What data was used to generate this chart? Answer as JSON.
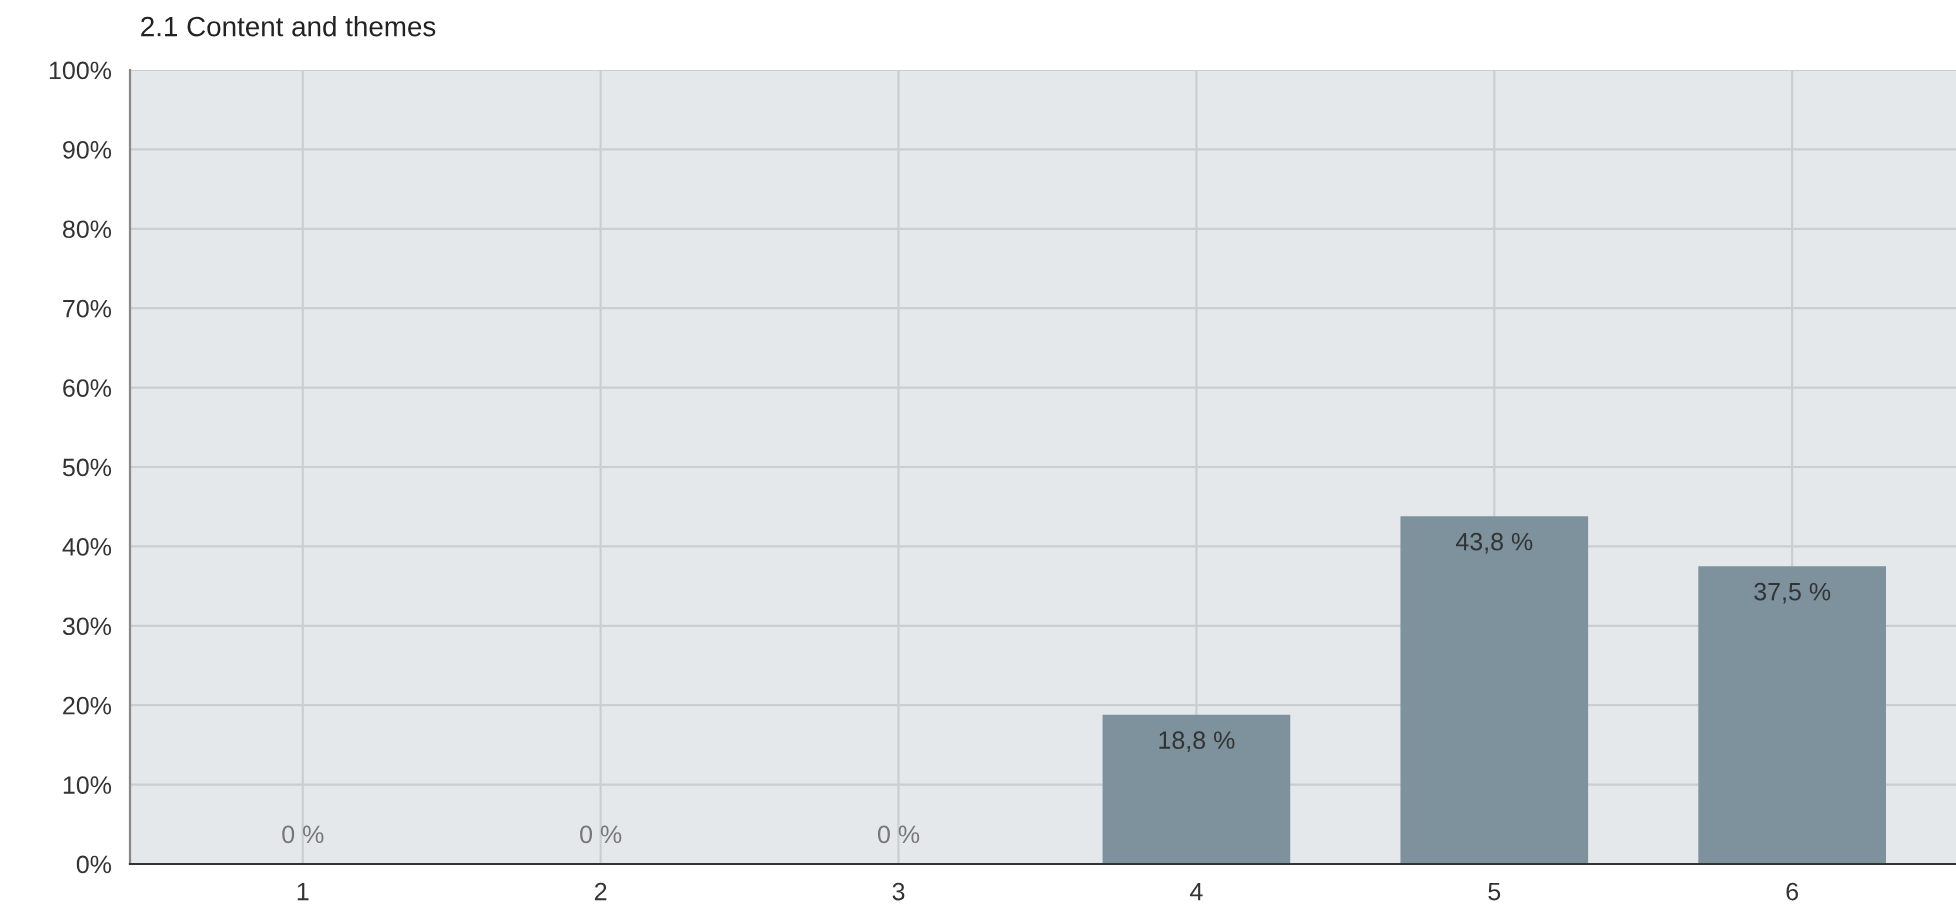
{
  "chart_data": {
    "type": "bar",
    "title": "2.1 Content and themes",
    "categories": [
      "1",
      "2",
      "3",
      "4",
      "5",
      "6"
    ],
    "values": [
      0,
      0,
      0,
      18.8,
      43.8,
      37.5
    ],
    "value_labels": [
      "0 %",
      "0 %",
      "0 %",
      "18,8 %",
      "43,8 %",
      "37,5 %"
    ],
    "color": "#7d929d",
    "ylim": [
      0,
      100
    ],
    "yticks": [
      {
        "value": 0,
        "label": "0%"
      },
      {
        "value": 10,
        "label": "10%"
      },
      {
        "value": 20,
        "label": "20%"
      },
      {
        "value": 30,
        "label": "30%"
      },
      {
        "value": 40,
        "label": "40%"
      },
      {
        "value": 50,
        "label": "50%"
      },
      {
        "value": 60,
        "label": "60%"
      },
      {
        "value": 70,
        "label": "70%"
      },
      {
        "value": 80,
        "label": "80%"
      },
      {
        "value": 90,
        "label": "90%"
      },
      {
        "value": 100,
        "label": "100%"
      }
    ],
    "grid": true,
    "legend": false
  }
}
